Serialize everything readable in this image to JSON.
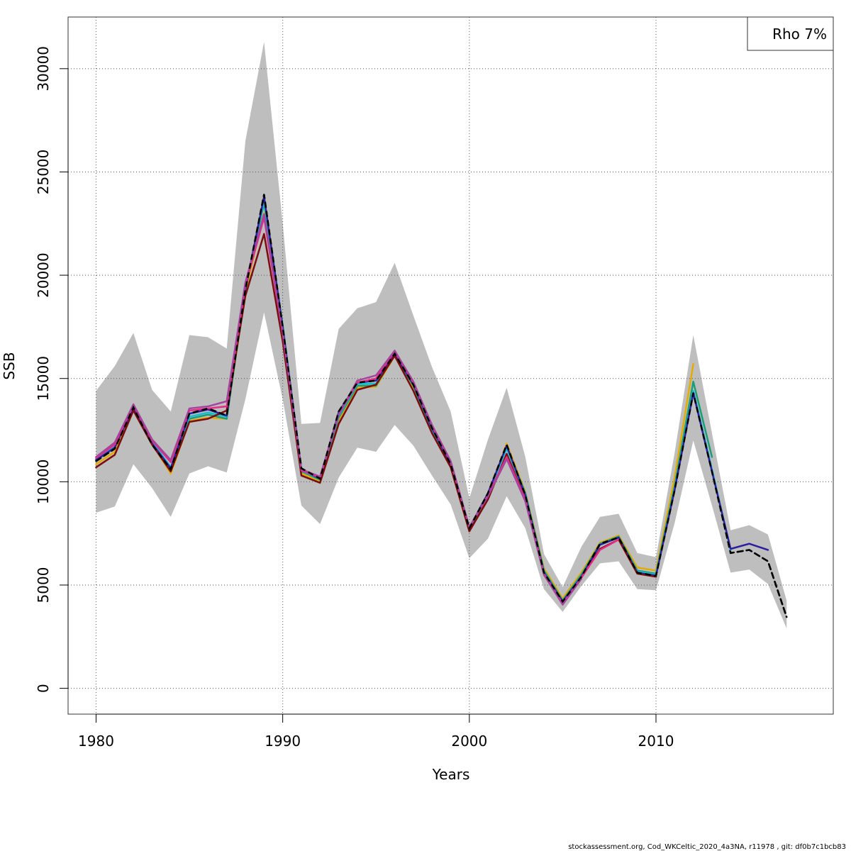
{
  "chart_data": {
    "type": "line",
    "xlabel": "Years",
    "ylabel": "SSB",
    "xlim": [
      1978.5,
      2019.5
    ],
    "ylim": [
      -1250,
      32500
    ],
    "x_ticks": [
      1980,
      1990,
      2000,
      2010
    ],
    "y_ticks": [
      0,
      5000,
      10000,
      15000,
      20000,
      25000,
      30000
    ],
    "grid": true,
    "legend_text": "Rho 7%",
    "legend_position": "top-right",
    "footer": "stockassessment.org, Cod_WKCeltic_2020_4a3NA, r11978 , git: df0b7c1bcb83",
    "band": {
      "color": "#bebebe",
      "x": [
        1980,
        1981,
        1982,
        1983,
        1984,
        1985,
        1986,
        1987,
        1988,
        1989,
        1990,
        1991,
        1992,
        1993,
        1994,
        1995,
        1996,
        1997,
        1998,
        1999,
        2000,
        2001,
        2002,
        2003,
        2004,
        2005,
        2006,
        2007,
        2008,
        2009,
        2010,
        2011,
        2012,
        2013,
        2014,
        2015,
        2016,
        2017
      ],
      "lower": [
        8500,
        8800,
        10850,
        9700,
        8300,
        10400,
        10750,
        10450,
        14000,
        18200,
        14000,
        8850,
        7950,
        10200,
        11650,
        11450,
        12750,
        11750,
        10300,
        8900,
        6300,
        7250,
        9300,
        7750,
        4800,
        3700,
        4950,
        6050,
        6150,
        4800,
        4750,
        8000,
        12000,
        8850,
        5600,
        5750,
        5050,
        2900
      ],
      "upper": [
        14400,
        15600,
        17200,
        14450,
        13400,
        17100,
        17000,
        16450,
        26500,
        31300,
        22500,
        12800,
        12850,
        17400,
        18400,
        18700,
        20600,
        18050,
        15550,
        13400,
        9200,
        12050,
        14550,
        11200,
        6500,
        4900,
        6850,
        8300,
        8450,
        6550,
        6350,
        11400,
        17100,
        12350,
        7650,
        7900,
        7450,
        4250
      ]
    },
    "series": [
      {
        "color": "#000000",
        "dash": "8,5",
        "width": 2.5,
        "x": [
          1980,
          1981,
          1982,
          1983,
          1984,
          1985,
          1986,
          1987,
          1988,
          1989,
          1990,
          1991,
          1992,
          1993,
          1994,
          1995,
          1996,
          1997,
          1998,
          1999,
          2000,
          2001,
          2002,
          2003,
          2004,
          2005,
          2006,
          2007,
          2008,
          2009,
          2010,
          2011,
          2012,
          2013,
          2014,
          2015,
          2016,
          2017
        ],
        "y": [
          11000,
          11600,
          13600,
          11800,
          10600,
          13300,
          13550,
          13200,
          19300,
          23900,
          17500,
          10650,
          10150,
          13400,
          14800,
          14900,
          16200,
          14700,
          12600,
          10850,
          7750,
          9450,
          11800,
          9350,
          5600,
          4200,
          5400,
          7000,
          7300,
          5600,
          5450,
          9600,
          14300,
          10500,
          6550,
          6700,
          6150,
          3450
        ]
      },
      {
        "color": "#e6ab02",
        "width": 2.5,
        "x": [
          1980,
          1981,
          1982,
          1983,
          1984,
          1985,
          1986,
          1987,
          1988,
          1989,
          1990,
          1991,
          1992,
          1993,
          1994,
          1995,
          1996,
          1997,
          1998,
          1999,
          2000,
          2001,
          2002,
          2003,
          2004,
          2005,
          2006,
          2007,
          2008,
          2009,
          2010,
          2011,
          2012
        ],
        "y": [
          10850,
          11450,
          13500,
          11850,
          10400,
          12950,
          13100,
          13050,
          19200,
          23000,
          17600,
          10400,
          10000,
          12900,
          14550,
          14600,
          16100,
          14550,
          12450,
          10750,
          7650,
          9250,
          11850,
          9500,
          5800,
          4350,
          5600,
          7050,
          7400,
          5850,
          5700,
          10200,
          15700
        ]
      },
      {
        "color": "#1b9e77",
        "width": 2.5,
        "x": [
          1980,
          1981,
          1982,
          1983,
          1984,
          1985,
          1986,
          1987,
          1988,
          1989,
          1990,
          1991,
          1992,
          1993,
          1994,
          1995,
          1996,
          1997,
          1998,
          1999,
          2000,
          2001,
          2002,
          2003,
          2004,
          2005,
          2006,
          2007,
          2008,
          2009,
          2010,
          2011,
          2012,
          2013
        ],
        "y": [
          11050,
          11700,
          13600,
          11900,
          10650,
          13050,
          13250,
          13050,
          19300,
          23500,
          17550,
          10500,
          10100,
          13100,
          14650,
          14650,
          16150,
          14650,
          12500,
          10800,
          7700,
          9350,
          11700,
          9450,
          5700,
          4250,
          5500,
          7000,
          7350,
          5700,
          5550,
          9800,
          14850,
          11200
        ]
      },
      {
        "color": "#17becf",
        "width": 2.5,
        "x": [
          1980,
          1981,
          1982,
          1983,
          1984,
          1985,
          1986,
          1987,
          1988,
          1989,
          1990,
          1991,
          1992,
          1993,
          1994,
          1995,
          1996,
          1997,
          1998,
          1999,
          2000,
          2001,
          2002,
          2003,
          2004,
          2005,
          2006,
          2007,
          2008,
          2009,
          2010,
          2011,
          2012,
          2013,
          2014
        ],
        "y": [
          11100,
          11750,
          13650,
          11950,
          10700,
          13150,
          13350,
          13150,
          19400,
          23600,
          17600,
          10550,
          10150,
          13200,
          14750,
          14750,
          16200,
          14700,
          12550,
          10850,
          7750,
          9400,
          11600,
          9400,
          5650,
          4200,
          5450,
          6950,
          7300,
          5650,
          5500,
          9700,
          14400,
          10600,
          6700
        ]
      },
      {
        "color": "#2b1f9e",
        "width": 2.5,
        "x": [
          1980,
          1981,
          1982,
          1983,
          1984,
          1985,
          1986,
          1987,
          1988,
          1989,
          1990,
          1991,
          1992,
          1993,
          1994,
          1995,
          1996,
          1997,
          1998,
          1999,
          2000,
          2001,
          2002,
          2003,
          2004,
          2005,
          2006,
          2007,
          2008,
          2009,
          2010,
          2011,
          2012,
          2013,
          2014,
          2015,
          2016
        ],
        "y": [
          11050,
          11650,
          13600,
          11850,
          10650,
          13300,
          13500,
          13200,
          19300,
          23800,
          17500,
          10600,
          10150,
          13350,
          14800,
          14900,
          16200,
          14700,
          12600,
          10850,
          7750,
          9450,
          11750,
          9350,
          5600,
          4200,
          5400,
          6950,
          7300,
          5600,
          5450,
          9600,
          14300,
          10500,
          6750,
          7000,
          6700
        ]
      },
      {
        "color": "#7b0c0c",
        "width": 2.5,
        "x": [
          1980,
          1981,
          1982,
          1983,
          1984,
          1985,
          1986,
          1987,
          1988,
          1989,
          1990,
          1991,
          1992,
          1993,
          1994,
          1995,
          1996,
          1997,
          1998,
          1999,
          2000,
          2001,
          2002,
          2003,
          2004,
          2005,
          2006,
          2007,
          2008,
          2009,
          2010
        ],
        "y": [
          10700,
          11300,
          13450,
          11800,
          10500,
          12900,
          13050,
          13450,
          19000,
          22000,
          16800,
          10300,
          9950,
          12800,
          14450,
          14700,
          16100,
          14400,
          12350,
          10700,
          7600,
          9150,
          11350,
          9150,
          5500,
          4100,
          5350,
          6750,
          7200,
          5550,
          5400
        ]
      },
      {
        "color": "#e7298a",
        "width": 2.5,
        "x": [
          1980,
          1981,
          1982,
          1983,
          1984,
          1985,
          1986,
          1987,
          1988,
          1989,
          1990,
          1991,
          1992,
          1993,
          1994,
          1995,
          1996,
          1997,
          1998,
          1999,
          2000,
          2001,
          2002,
          2003,
          2004,
          2005,
          2006,
          2007,
          2008
        ],
        "y": [
          11150,
          11800,
          13700,
          12000,
          10950,
          13450,
          13550,
          13650,
          19500,
          22800,
          17200,
          10550,
          10200,
          13250,
          14800,
          15000,
          16300,
          14800,
          12700,
          10950,
          7800,
          9350,
          11200,
          9150,
          5550,
          4100,
          5350,
          6700,
          7200
        ]
      },
      {
        "color": "#a6449b",
        "width": 2.5,
        "x": [
          1980,
          1981,
          1982,
          1983,
          1984,
          1985,
          1986,
          1987,
          1988,
          1989,
          1990,
          1991,
          1992,
          1993,
          1994,
          1995,
          1996,
          1997,
          1998,
          1999,
          2000,
          2001,
          2002,
          2003,
          2004,
          2005,
          2006
        ],
        "y": [
          11200,
          11900,
          13750,
          12050,
          11050,
          13550,
          13650,
          13900,
          19650,
          22950,
          17250,
          10600,
          10250,
          13250,
          14900,
          15150,
          16350,
          14850,
          12750,
          11000,
          7800,
          9300,
          11100,
          9050,
          5500,
          4050,
          5300
        ]
      }
    ]
  }
}
